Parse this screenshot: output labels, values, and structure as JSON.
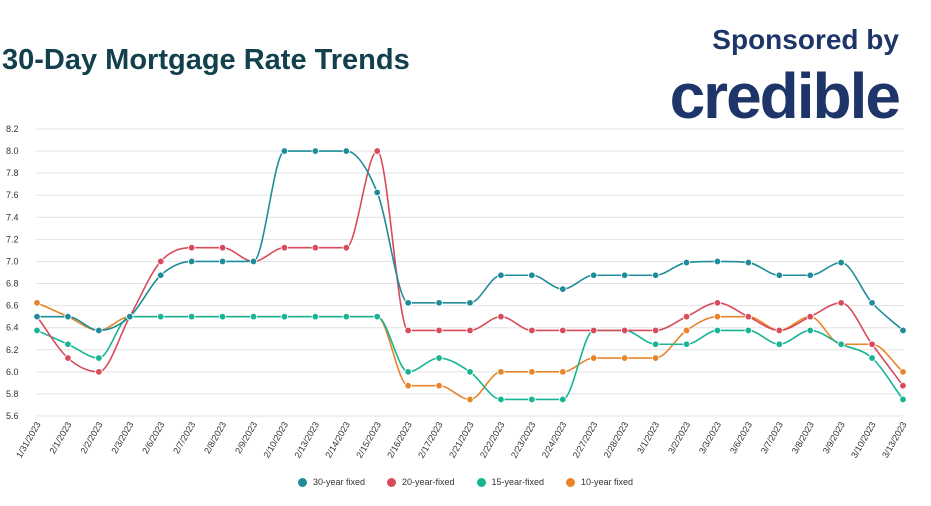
{
  "header": {
    "title": "30-Day Mortgage Rate Trends",
    "sponsor_text": "Sponsored by",
    "sponsor_logo": "credible"
  },
  "chart_data": {
    "type": "line",
    "title": "30-Day Mortgage Rate Trends",
    "xlabel": "",
    "ylabel": "",
    "ylim": [
      5.6,
      8.2
    ],
    "yticks": [
      "8.2",
      "8.0",
      "7.8",
      "7.6",
      "7.4",
      "7.2",
      "7.0",
      "6.8",
      "6.6",
      "6.4",
      "6.2",
      "6.0",
      "5.8",
      "5.6"
    ],
    "grid": true,
    "legend": "bottom",
    "categories": [
      "1/31/2023",
      "2/1/2023",
      "2/2/2023",
      "2/3/2023",
      "2/6/2023",
      "2/7/2023",
      "2/8/2023",
      "2/9/2023",
      "2/10/2023",
      "2/13/2023",
      "2/14/2023",
      "2/15/2023",
      "2/16/2023",
      "2/17/2023",
      "2/21/2023",
      "2/22/2023",
      "2/23/2023",
      "2/24/2023",
      "2/27/2023",
      "2/28/2023",
      "3/1/2023",
      "3/2/2023",
      "3/3/2023",
      "3/6/2023",
      "3/7/2023",
      "3/8/2023",
      "3/9/2023",
      "3/10/2023",
      "3/13/2023"
    ],
    "series": [
      {
        "name": "30-year fixed",
        "color": "#1e8c99",
        "values": [
          6.5,
          6.5,
          6.375,
          6.5,
          6.875,
          7.0,
          7.0,
          7.0,
          8.0,
          8.0,
          8.0,
          7.625,
          6.625,
          6.625,
          6.625,
          6.875,
          6.875,
          6.75,
          6.875,
          6.875,
          6.875,
          6.99,
          7.0,
          6.99,
          6.875,
          6.875,
          6.99,
          6.625,
          6.375
        ]
      },
      {
        "name": "20-year-fixed",
        "color": "#d94a5a",
        "values": [
          6.5,
          6.125,
          6.0,
          6.5,
          7.0,
          7.125,
          7.125,
          7.0,
          7.125,
          7.125,
          7.125,
          8.0,
          6.375,
          6.375,
          6.375,
          6.5,
          6.375,
          6.375,
          6.375,
          6.375,
          6.375,
          6.5,
          6.625,
          6.5,
          6.375,
          6.5,
          6.625,
          6.25,
          5.875
        ]
      },
      {
        "name": "15-year-fixed",
        "color": "#17b594",
        "values": [
          6.375,
          6.25,
          6.125,
          6.5,
          6.5,
          6.5,
          6.5,
          6.5,
          6.5,
          6.5,
          6.5,
          6.5,
          6.0,
          6.125,
          6.0,
          5.75,
          5.75,
          5.75,
          6.375,
          6.375,
          6.25,
          6.25,
          6.375,
          6.375,
          6.25,
          6.375,
          6.25,
          6.125,
          5.75
        ]
      },
      {
        "name": "10-year fixed",
        "color": "#e8842a",
        "values": [
          6.625,
          6.5,
          6.375,
          6.5,
          6.5,
          6.5,
          6.5,
          6.5,
          6.5,
          6.5,
          6.5,
          6.5,
          5.875,
          5.875,
          5.75,
          6.0,
          6.0,
          6.0,
          6.125,
          6.125,
          6.125,
          6.375,
          6.5,
          6.5,
          6.375,
          6.5,
          6.25,
          6.25,
          6.0
        ]
      }
    ]
  }
}
